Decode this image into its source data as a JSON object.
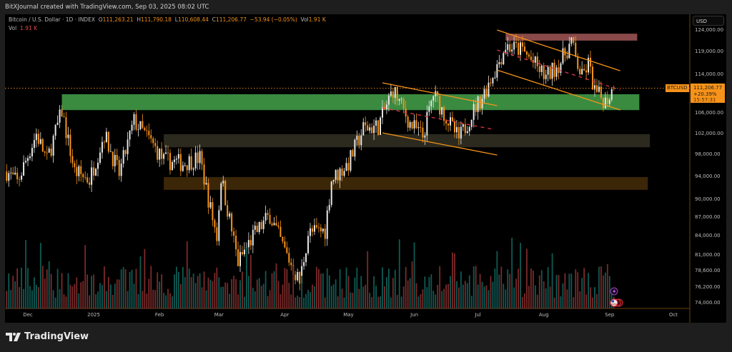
{
  "header": {
    "attribution": "BitXJournal created with TradingView.com, Sep 03, 2025 08:02 UTC"
  },
  "legend": {
    "symbol": "Bitcoin / U.S. Dollar · 1D · INDEX",
    "o_label": "O",
    "o": "111,263.21",
    "h_label": "H",
    "h": "111,790.18",
    "l_label": "L",
    "l": "110,608.44",
    "c_label": "C",
    "c": "111,206.77",
    "change": "−53.94 (−0.05%)",
    "vol_label": "Vol",
    "vol": "1.91 K",
    "vol_row_label": "Vol",
    "vol_row_value": "1.91 K"
  },
  "price_axis": {
    "currency": "USD",
    "symbol_tag": "BTCUSD",
    "last_price": "111,206.77",
    "last_change": "+20.39%",
    "countdown": "15:57:31"
  },
  "footer": {
    "brand": "TradingView"
  },
  "colors": {
    "up_candle": "#e6e6e6",
    "down_candle": "#f7931a",
    "up_volume": "#0f5b55",
    "down_volume": "#7b2a2a",
    "trendline": "#f7931a",
    "midline": "#e0344a"
  },
  "chart_data": {
    "type": "candlestick",
    "title": "Bitcoin / U.S. Dollar · 1D · INDEX",
    "y_scale": "log",
    "ylim": [
      73500,
      126000
    ],
    "y_ticks": [
      "124,000.00",
      "119,000.00",
      "114,000.00",
      "106,000.00",
      "102,000.00",
      "98,000.00",
      "94,000.00",
      "90,000.00",
      "87,000.00",
      "84,000.00",
      "81,000.00",
      "78,600.00",
      "76,200.00",
      "74,000.00"
    ],
    "x_ticks": [
      {
        "label": "Dec",
        "date": "2024-12-01"
      },
      {
        "label": "2025",
        "date": "2025-01-01"
      },
      {
        "label": "Feb",
        "date": "2025-02-01"
      },
      {
        "label": "Mar",
        "date": "2025-03-01"
      },
      {
        "label": "Apr",
        "date": "2025-04-01"
      },
      {
        "label": "May",
        "date": "2025-05-01"
      },
      {
        "label": "Jun",
        "date": "2025-06-01"
      },
      {
        "label": "Jul",
        "date": "2025-07-01"
      },
      {
        "label": "Aug",
        "date": "2025-08-01"
      },
      {
        "label": "Sep",
        "date": "2025-09-01"
      },
      {
        "label": "Oct",
        "date": "2025-10-01"
      }
    ],
    "last_bar": {
      "date": "2025-09-03",
      "open": 111263.21,
      "high": 111790.18,
      "low": 110608.44,
      "close": 111206.77,
      "volume": "1.91K"
    },
    "closes": [
      {
        "date": "2024-11-21",
        "close": 95000
      },
      {
        "date": "2024-11-26",
        "close": 93000
      },
      {
        "date": "2024-12-05",
        "close": 102000
      },
      {
        "date": "2024-12-10",
        "close": 97000
      },
      {
        "date": "2024-12-17",
        "close": 106500
      },
      {
        "date": "2024-12-23",
        "close": 95000
      },
      {
        "date": "2024-12-30",
        "close": 93500
      },
      {
        "date": "2025-01-06",
        "close": 102000
      },
      {
        "date": "2025-01-13",
        "close": 94500
      },
      {
        "date": "2025-01-20",
        "close": 104500
      },
      {
        "date": "2025-01-27",
        "close": 101000
      },
      {
        "date": "2025-02-03",
        "close": 97000
      },
      {
        "date": "2025-02-12",
        "close": 96500
      },
      {
        "date": "2025-02-20",
        "close": 97500
      },
      {
        "date": "2025-02-25",
        "close": 88500
      },
      {
        "date": "2025-02-28",
        "close": 84000
      },
      {
        "date": "2025-03-02",
        "close": 94000
      },
      {
        "date": "2025-03-10",
        "close": 80000
      },
      {
        "date": "2025-03-17",
        "close": 84000
      },
      {
        "date": "2025-03-25",
        "close": 87500
      },
      {
        "date": "2025-03-31",
        "close": 82500
      },
      {
        "date": "2025-04-08",
        "close": 77000
      },
      {
        "date": "2025-04-12",
        "close": 84500
      },
      {
        "date": "2025-04-20",
        "close": 85000
      },
      {
        "date": "2025-04-23",
        "close": 93500
      },
      {
        "date": "2025-05-01",
        "close": 96500
      },
      {
        "date": "2025-05-08",
        "close": 103000
      },
      {
        "date": "2025-05-15",
        "close": 103500
      },
      {
        "date": "2025-05-22",
        "close": 111000
      },
      {
        "date": "2025-05-30",
        "close": 104000
      },
      {
        "date": "2025-06-05",
        "close": 101500
      },
      {
        "date": "2025-06-10",
        "close": 110000
      },
      {
        "date": "2025-06-17",
        "close": 104500
      },
      {
        "date": "2025-06-22",
        "close": 101000
      },
      {
        "date": "2025-06-30",
        "close": 107500
      },
      {
        "date": "2025-07-03",
        "close": 109500
      },
      {
        "date": "2025-07-10",
        "close": 116000
      },
      {
        "date": "2025-07-14",
        "close": 120500
      },
      {
        "date": "2025-07-22",
        "close": 119500
      },
      {
        "date": "2025-08-02",
        "close": 113500
      },
      {
        "date": "2025-08-09",
        "close": 117000
      },
      {
        "date": "2025-08-14",
        "close": 121500
      },
      {
        "date": "2025-08-16",
        "close": 117500
      },
      {
        "date": "2025-08-19",
        "close": 113500
      },
      {
        "date": "2025-08-22",
        "close": 116500
      },
      {
        "date": "2025-08-25",
        "close": 110500
      },
      {
        "date": "2025-08-30",
        "close": 108500
      },
      {
        "date": "2025-09-03",
        "close": 111206.77
      }
    ],
    "zones": [
      {
        "name": "supply-zone",
        "from": "2025-07-14",
        "to": "2025-09-14",
        "low": 121700,
        "high": 123300,
        "color": "#8b4a4a"
      },
      {
        "name": "support-zone-green",
        "from": "2024-12-17",
        "to": "2025-09-15",
        "low": 106700,
        "high": 109950,
        "color": "#3a8a40"
      },
      {
        "name": "support-zone-olive",
        "from": "2025-02-03",
        "to": "2025-09-20",
        "low": 99450,
        "high": 101950,
        "color": "#2c2a1e"
      },
      {
        "name": "support-zone-brown",
        "from": "2025-02-03",
        "to": "2025-09-19",
        "low": 91750,
        "high": 94000,
        "color": "#3b2608"
      }
    ],
    "trendlines": [
      {
        "name": "channel-1-top",
        "style": "solid",
        "from": {
          "date": "2025-05-17",
          "price": 112350
        },
        "to": {
          "date": "2025-07-10",
          "price": 107600
        }
      },
      {
        "name": "channel-1-bottom",
        "style": "solid",
        "from": {
          "date": "2025-05-17",
          "price": 102200
        },
        "to": {
          "date": "2025-07-10",
          "price": 98000
        }
      },
      {
        "name": "channel-1-mid",
        "style": "dashed",
        "from": {
          "date": "2025-05-17",
          "price": 107150
        },
        "to": {
          "date": "2025-07-08",
          "price": 102900
        }
      },
      {
        "name": "channel-2-top",
        "style": "solid",
        "from": {
          "date": "2025-07-10",
          "price": 124170
        },
        "to": {
          "date": "2025-09-06",
          "price": 114950
        }
      },
      {
        "name": "channel-2-bottom",
        "style": "solid",
        "from": {
          "date": "2025-07-10",
          "price": 115100
        },
        "to": {
          "date": "2025-09-06",
          "price": 106730
        }
      },
      {
        "name": "channel-2-mid",
        "style": "dashed",
        "from": {
          "date": "2025-07-10",
          "price": 119550
        },
        "to": {
          "date": "2025-09-06",
          "price": 110850
        }
      }
    ],
    "grid": false
  }
}
